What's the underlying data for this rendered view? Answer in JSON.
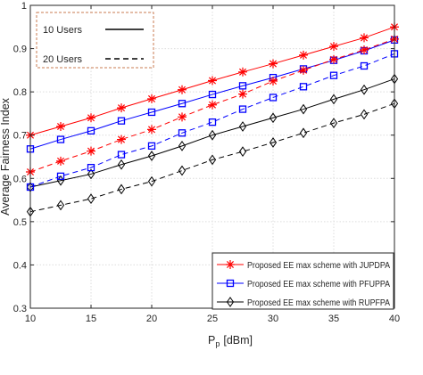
{
  "chart_data": {
    "type": "line",
    "title": "",
    "xlabel": "P",
    "xlabel_sub": "p",
    "xlabel_unit": "[dBm]",
    "ylabel": "Average Fairness Index",
    "x": [
      10,
      12.5,
      15,
      17.5,
      20,
      22.5,
      25,
      27.5,
      30,
      32.5,
      35,
      37.5,
      40
    ],
    "xlim": [
      10,
      40
    ],
    "ylim": [
      0.3,
      1
    ],
    "xticks": [
      "10",
      "15",
      "20",
      "25",
      "30",
      "35",
      "40"
    ],
    "xtick_values": [
      10,
      15,
      20,
      25,
      30,
      35,
      40
    ],
    "yticks": [
      "0.3",
      "0.4",
      "0.5",
      "0.6",
      "0.7",
      "0.8",
      "0.9",
      "1"
    ],
    "ytick_values": [
      0.3,
      0.4,
      0.5,
      0.6,
      0.7,
      0.8,
      0.9,
      1
    ],
    "grid": true,
    "series": [
      {
        "name": "Proposed EE max scheme with JUPDPA",
        "users": "10",
        "color": "#ff0000",
        "marker": "star",
        "linestyle": "solid",
        "values": [
          0.7,
          0.72,
          0.74,
          0.763,
          0.784,
          0.805,
          0.826,
          0.846,
          0.865,
          0.885,
          0.905,
          0.925,
          0.95
        ]
      },
      {
        "name": "Proposed EE max scheme with PFUPPA",
        "users": "10",
        "color": "#0000ff",
        "marker": "square",
        "linestyle": "solid",
        "values": [
          0.668,
          0.69,
          0.71,
          0.733,
          0.753,
          0.773,
          0.794,
          0.814,
          0.833,
          0.853,
          0.873,
          0.895,
          0.92
        ]
      },
      {
        "name": "Proposed EE max scheme with RUPFPA",
        "users": "10",
        "color": "#000000",
        "marker": "diamond",
        "linestyle": "solid",
        "values": [
          0.58,
          0.595,
          0.61,
          0.632,
          0.652,
          0.675,
          0.7,
          0.72,
          0.74,
          0.76,
          0.783,
          0.805,
          0.83
        ]
      },
      {
        "name": "Proposed EE max scheme with JUPDPA",
        "users": "20",
        "color": "#ff0000",
        "marker": "star",
        "linestyle": "dashed",
        "values": [
          0.615,
          0.64,
          0.663,
          0.69,
          0.713,
          0.742,
          0.77,
          0.795,
          0.825,
          0.85,
          0.875,
          0.897,
          0.922
        ]
      },
      {
        "name": "Proposed EE max scheme with PFUPPA",
        "users": "20",
        "color": "#0000ff",
        "marker": "square",
        "linestyle": "dashed",
        "values": [
          0.58,
          0.605,
          0.625,
          0.655,
          0.675,
          0.705,
          0.73,
          0.76,
          0.787,
          0.812,
          0.838,
          0.86,
          0.888
        ]
      },
      {
        "name": "Proposed EE max scheme with RUPFPA",
        "users": "20",
        "color": "#000000",
        "marker": "diamond",
        "linestyle": "dashed",
        "values": [
          0.523,
          0.538,
          0.553,
          0.575,
          0.593,
          0.618,
          0.643,
          0.662,
          0.683,
          0.705,
          0.728,
          0.748,
          0.773
        ]
      }
    ],
    "user_legend": {
      "placement": "top-left",
      "items": [
        {
          "label": "10 Users",
          "linestyle": "solid"
        },
        {
          "label": "20 Users",
          "linestyle": "dashed"
        }
      ]
    },
    "scheme_legend": {
      "placement": "bottom-right",
      "items": [
        {
          "label": "Proposed EE max scheme with JUPDPA",
          "color": "#ff0000",
          "marker": "star"
        },
        {
          "label": "Proposed EE max scheme with PFUPPA",
          "color": "#0000ff",
          "marker": "square"
        },
        {
          "label": "Proposed EE max scheme with RUPFPA",
          "color": "#000000",
          "marker": "diamond"
        }
      ]
    }
  }
}
